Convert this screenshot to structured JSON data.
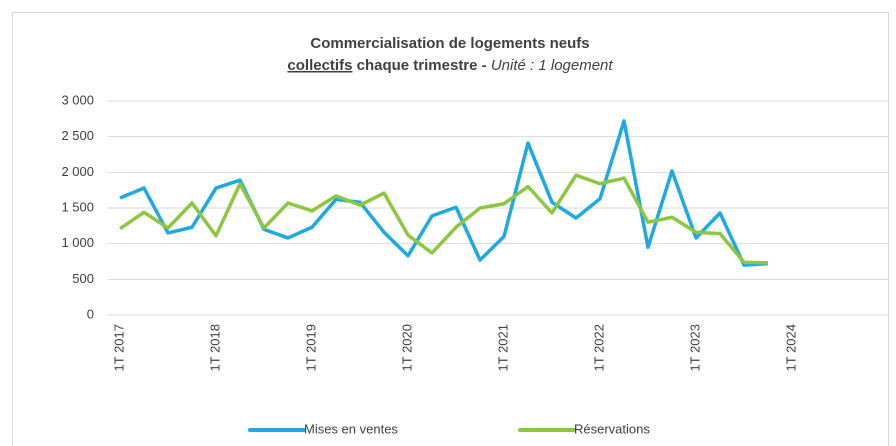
{
  "chart_data": {
    "type": "line",
    "title": "Commercialisation de logements neufs",
    "subtitle": [
      "collectifs",
      "chaque trimestre -",
      "Unité : 1 logement"
    ],
    "categories": [
      "1T 2017",
      null,
      null,
      null,
      "1T 2018",
      null,
      null,
      null,
      "1T 2019",
      null,
      null,
      null,
      "1T 2020",
      null,
      null,
      null,
      "1T 2021",
      null,
      null,
      null,
      "1T 2022",
      null,
      null,
      null,
      "1T 2023",
      null,
      null,
      null,
      "1T 2024",
      null,
      null,
      null
    ],
    "series": [
      {
        "name": "Mises en ventes",
        "color": "#1ca9e6",
        "values": [
          1640,
          1780,
          1150,
          1230,
          1780,
          1890,
          1200,
          1080,
          1230,
          1620,
          1580,
          1160,
          830,
          1390,
          1510,
          770,
          1100,
          2410,
          1580,
          1360,
          1630,
          2720,
          950,
          2020,
          1080,
          1430,
          700,
          720,
          null,
          null,
          null,
          null
        ]
      },
      {
        "name": "Réservations",
        "color": "#8dc63f",
        "values": [
          1210,
          1440,
          1220,
          1570,
          1110,
          1840,
          1220,
          1570,
          1460,
          1670,
          1540,
          1710,
          1120,
          870,
          1230,
          1500,
          1560,
          1800,
          1430,
          1960,
          1840,
          1920,
          1300,
          1370,
          1160,
          1140,
          740,
          730,
          null,
          null,
          null,
          null
        ]
      }
    ],
    "ylim": [
      0,
      3000
    ],
    "yticks": [
      0,
      500,
      {
        "value": 1000,
        "label": "1 000"
      },
      {
        "value": 1500,
        "label": "1 500"
      },
      {
        "value": 2000,
        "label": "2 000"
      },
      {
        "value": 2500,
        "label": "2 500"
      },
      {
        "value": 3000,
        "label": "3 000"
      }
    ],
    "grid": true,
    "legend": "bottom"
  }
}
